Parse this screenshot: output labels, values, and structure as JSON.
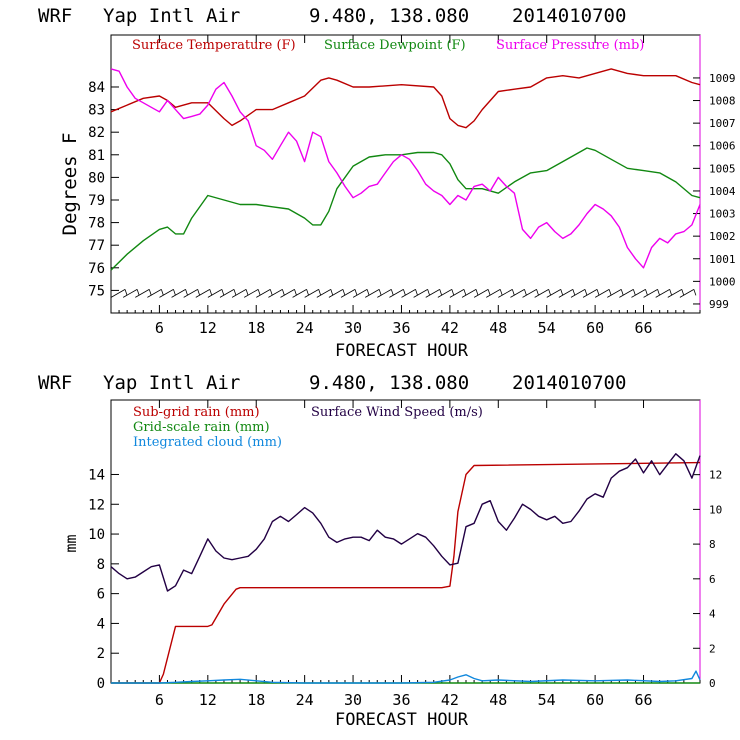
{
  "chart_data": [
    {
      "type": "line",
      "header": {
        "model": "WRF",
        "station": "Yap Intl Air",
        "coords": "9.480, 138.080",
        "run": "2014010700"
      },
      "xlabel": "FORECAST HOUR",
      "ylabel": "Degrees F",
      "xlim": [
        0,
        73
      ],
      "xticks": [
        6,
        12,
        18,
        24,
        30,
        36,
        42,
        48,
        54,
        60,
        66
      ],
      "ylim": [
        74,
        86.3
      ],
      "yticks": [
        75,
        76,
        77,
        78,
        79,
        80,
        81,
        82,
        83,
        84
      ],
      "y2lim": [
        998.6,
        1010.9
      ],
      "y2ticks": [
        999,
        1000,
        1001,
        1002,
        1003,
        1004,
        1005,
        1006,
        1007,
        1008,
        1009
      ],
      "legend": [
        {
          "label": "Surface Temperature (F)",
          "color": "#bb0000"
        },
        {
          "label": "Surface Dewpoint (F)",
          "color": "#118811"
        },
        {
          "label": "Surface Pressure (mb)",
          "color": "#ee00ee"
        }
      ],
      "series": [
        {
          "name": "Surface Temperature (F)",
          "color": "#bb0000",
          "axis": "left",
          "x": [
            0,
            2,
            4,
            6,
            7,
            8,
            10,
            12,
            14,
            15,
            16,
            18,
            20,
            22,
            24,
            26,
            27,
            28,
            30,
            32,
            36,
            40,
            41,
            42,
            43,
            44,
            45,
            46,
            48,
            50,
            52,
            54,
            56,
            58,
            60,
            62,
            64,
            66,
            68,
            70,
            72,
            73
          ],
          "y": [
            82.9,
            83.2,
            83.5,
            83.6,
            83.4,
            83.1,
            83.3,
            83.3,
            82.6,
            82.3,
            82.5,
            83.0,
            83.0,
            83.3,
            83.6,
            84.3,
            84.4,
            84.3,
            84.0,
            84.0,
            84.1,
            84.0,
            83.6,
            82.6,
            82.3,
            82.2,
            82.5,
            83.0,
            83.8,
            83.9,
            84.0,
            84.4,
            84.5,
            84.4,
            84.6,
            84.8,
            84.6,
            84.5,
            84.5,
            84.5,
            84.2,
            84.1
          ]
        },
        {
          "name": "Surface Dewpoint (F)",
          "color": "#118811",
          "axis": "left",
          "x": [
            0,
            2,
            4,
            6,
            7,
            8,
            9,
            10,
            12,
            14,
            16,
            18,
            20,
            22,
            24,
            25,
            26,
            27,
            28,
            30,
            32,
            34,
            36,
            38,
            40,
            41,
            42,
            43,
            44,
            46,
            48,
            50,
            52,
            54,
            56,
            58,
            59,
            60,
            62,
            64,
            66,
            68,
            70,
            72,
            73
          ],
          "y": [
            75.9,
            76.6,
            77.2,
            77.7,
            77.8,
            77.5,
            77.5,
            78.2,
            79.2,
            79.0,
            78.8,
            78.8,
            78.7,
            78.6,
            78.2,
            77.9,
            77.9,
            78.5,
            79.5,
            80.5,
            80.9,
            81.0,
            81.0,
            81.1,
            81.1,
            81.0,
            80.6,
            79.9,
            79.5,
            79.5,
            79.3,
            79.8,
            80.2,
            80.3,
            80.7,
            81.1,
            81.3,
            81.2,
            80.8,
            80.4,
            80.3,
            80.2,
            79.8,
            79.2,
            79.1
          ]
        },
        {
          "name": "Surface Pressure (mb)",
          "color": "#ee00ee",
          "axis": "right",
          "x": [
            0,
            1,
            2,
            3,
            4,
            5,
            6,
            7,
            8,
            9,
            10,
            11,
            12,
            13,
            14,
            15,
            16,
            17,
            18,
            19,
            20,
            21,
            22,
            23,
            24,
            25,
            26,
            27,
            28,
            29,
            30,
            31,
            32,
            33,
            34,
            35,
            36,
            37,
            38,
            39,
            40,
            41,
            42,
            43,
            44,
            45,
            46,
            47,
            48,
            49,
            50,
            51,
            52,
            53,
            54,
            55,
            56,
            57,
            58,
            59,
            60,
            61,
            62,
            63,
            64,
            65,
            66,
            67,
            68,
            69,
            70,
            71,
            72,
            73
          ],
          "y": [
            1009.4,
            1009.3,
            1008.6,
            1008.1,
            1007.9,
            1007.7,
            1007.5,
            1008.0,
            1007.6,
            1007.2,
            1007.3,
            1007.4,
            1007.8,
            1008.5,
            1008.8,
            1008.2,
            1007.5,
            1007.1,
            1006.0,
            1005.8,
            1005.4,
            1006.0,
            1006.6,
            1006.2,
            1005.3,
            1006.6,
            1006.4,
            1005.3,
            1004.8,
            1004.2,
            1003.7,
            1003.9,
            1004.2,
            1004.3,
            1004.8,
            1005.3,
            1005.6,
            1005.4,
            1004.9,
            1004.3,
            1004.0,
            1003.8,
            1003.4,
            1003.8,
            1003.6,
            1004.2,
            1004.3,
            1004.0,
            1004.6,
            1004.2,
            1003.9,
            1002.3,
            1001.9,
            1002.4,
            1002.6,
            1002.2,
            1001.9,
            1002.1,
            1002.5,
            1003.0,
            1003.4,
            1003.2,
            1002.9,
            1002.4,
            1001.5,
            1001.0,
            1000.6,
            1001.5,
            1001.9,
            1001.7,
            1002.1,
            1002.2,
            1002.5,
            1003.4
          ]
        }
      ],
      "wind_barbs": {
        "color": "#000000",
        "note": "wind barbs plotted along ~75 F line"
      }
    },
    {
      "type": "line",
      "header": {
        "model": "WRF",
        "station": "Yap Intl Air",
        "coords": "9.480, 138.080",
        "run": "2014010700"
      },
      "xlabel": "FORECAST HOUR",
      "ylabel": "mm",
      "xlim": [
        0,
        73
      ],
      "xticks": [
        6,
        12,
        18,
        24,
        30,
        36,
        42,
        48,
        54,
        60,
        66
      ],
      "ylim": [
        0,
        19
      ],
      "yticks": [
        0,
        2,
        4,
        6,
        8,
        10,
        12,
        14
      ],
      "y2lim": [
        0,
        16.3
      ],
      "y2ticks": [
        0,
        2,
        4,
        6,
        8,
        10,
        12
      ],
      "legend": [
        {
          "label": "Sub-grid rain (mm)",
          "color": "#bb0000"
        },
        {
          "label": "Surface Wind Speed (m/s)",
          "color": "#220044"
        },
        {
          "label": "Grid-scale rain (mm)",
          "color": "#118811"
        },
        {
          "label": "Integrated cloud (mm)",
          "color": "#1188dd"
        }
      ],
      "series": [
        {
          "name": "Sub-grid rain (mm)",
          "color": "#bb0000",
          "axis": "left",
          "x": [
            0,
            6,
            6.5,
            8,
            12,
            12.5,
            14,
            15.5,
            16,
            41,
            42,
            42.5,
            43,
            44,
            45,
            73
          ],
          "y": [
            0,
            0,
            0.6,
            3.8,
            3.8,
            3.9,
            5.3,
            6.3,
            6.4,
            6.4,
            6.5,
            8.5,
            11.5,
            14.0,
            14.6,
            14.8
          ]
        },
        {
          "name": "Surface Wind Speed (m/s)",
          "color": "#220044",
          "axis": "right",
          "x": [
            0,
            1,
            2,
            3,
            4,
            5,
            6,
            7,
            8,
            9,
            10,
            11,
            12,
            13,
            14,
            15,
            16,
            17,
            18,
            19,
            20,
            21,
            22,
            23,
            24,
            25,
            26,
            27,
            28,
            29,
            30,
            31,
            32,
            33,
            34,
            35,
            36,
            37,
            38,
            39,
            40,
            41,
            42,
            43,
            44,
            45,
            46,
            47,
            48,
            49,
            50,
            51,
            52,
            53,
            54,
            55,
            56,
            57,
            58,
            59,
            60,
            61,
            62,
            63,
            64,
            65,
            66,
            67,
            68,
            69,
            70,
            71,
            72,
            73
          ],
          "y": [
            6.7,
            6.3,
            6.0,
            6.1,
            6.4,
            6.7,
            6.8,
            5.3,
            5.6,
            6.5,
            6.3,
            7.3,
            8.3,
            7.6,
            7.2,
            7.1,
            7.2,
            7.3,
            7.7,
            8.3,
            9.3,
            9.6,
            9.3,
            9.7,
            10.1,
            9.8,
            9.2,
            8.4,
            8.1,
            8.3,
            8.4,
            8.4,
            8.2,
            8.8,
            8.4,
            8.3,
            8.0,
            8.3,
            8.6,
            8.4,
            7.9,
            7.3,
            6.8,
            6.9,
            9.0,
            9.2,
            10.3,
            10.5,
            9.3,
            8.8,
            9.5,
            10.3,
            10.0,
            9.6,
            9.4,
            9.6,
            9.2,
            9.3,
            9.9,
            10.6,
            10.9,
            10.7,
            11.8,
            12.2,
            12.4,
            12.9,
            12.1,
            12.8,
            12.0,
            12.6,
            13.2,
            12.8,
            11.8,
            13.1
          ]
        },
        {
          "name": "Grid-scale rain (mm)",
          "color": "#118811",
          "axis": "left",
          "x": [
            0,
            73
          ],
          "y": [
            0,
            0
          ]
        },
        {
          "name": "Integrated cloud (mm)",
          "color": "#1188dd",
          "axis": "left",
          "x": [
            0,
            6,
            8,
            10,
            12,
            14,
            16,
            18,
            20,
            24,
            30,
            36,
            40,
            42,
            43,
            44,
            45,
            46,
            48,
            52,
            56,
            60,
            64,
            68,
            70,
            72,
            72.5,
            73
          ],
          "y": [
            0,
            0,
            0.05,
            0.1,
            0.15,
            0.2,
            0.25,
            0.15,
            0.05,
            0,
            0,
            0,
            0.05,
            0.2,
            0.4,
            0.55,
            0.3,
            0.15,
            0.2,
            0.1,
            0.2,
            0.15,
            0.2,
            0.1,
            0.15,
            0.3,
            0.8,
            0.2
          ]
        }
      ]
    }
  ]
}
